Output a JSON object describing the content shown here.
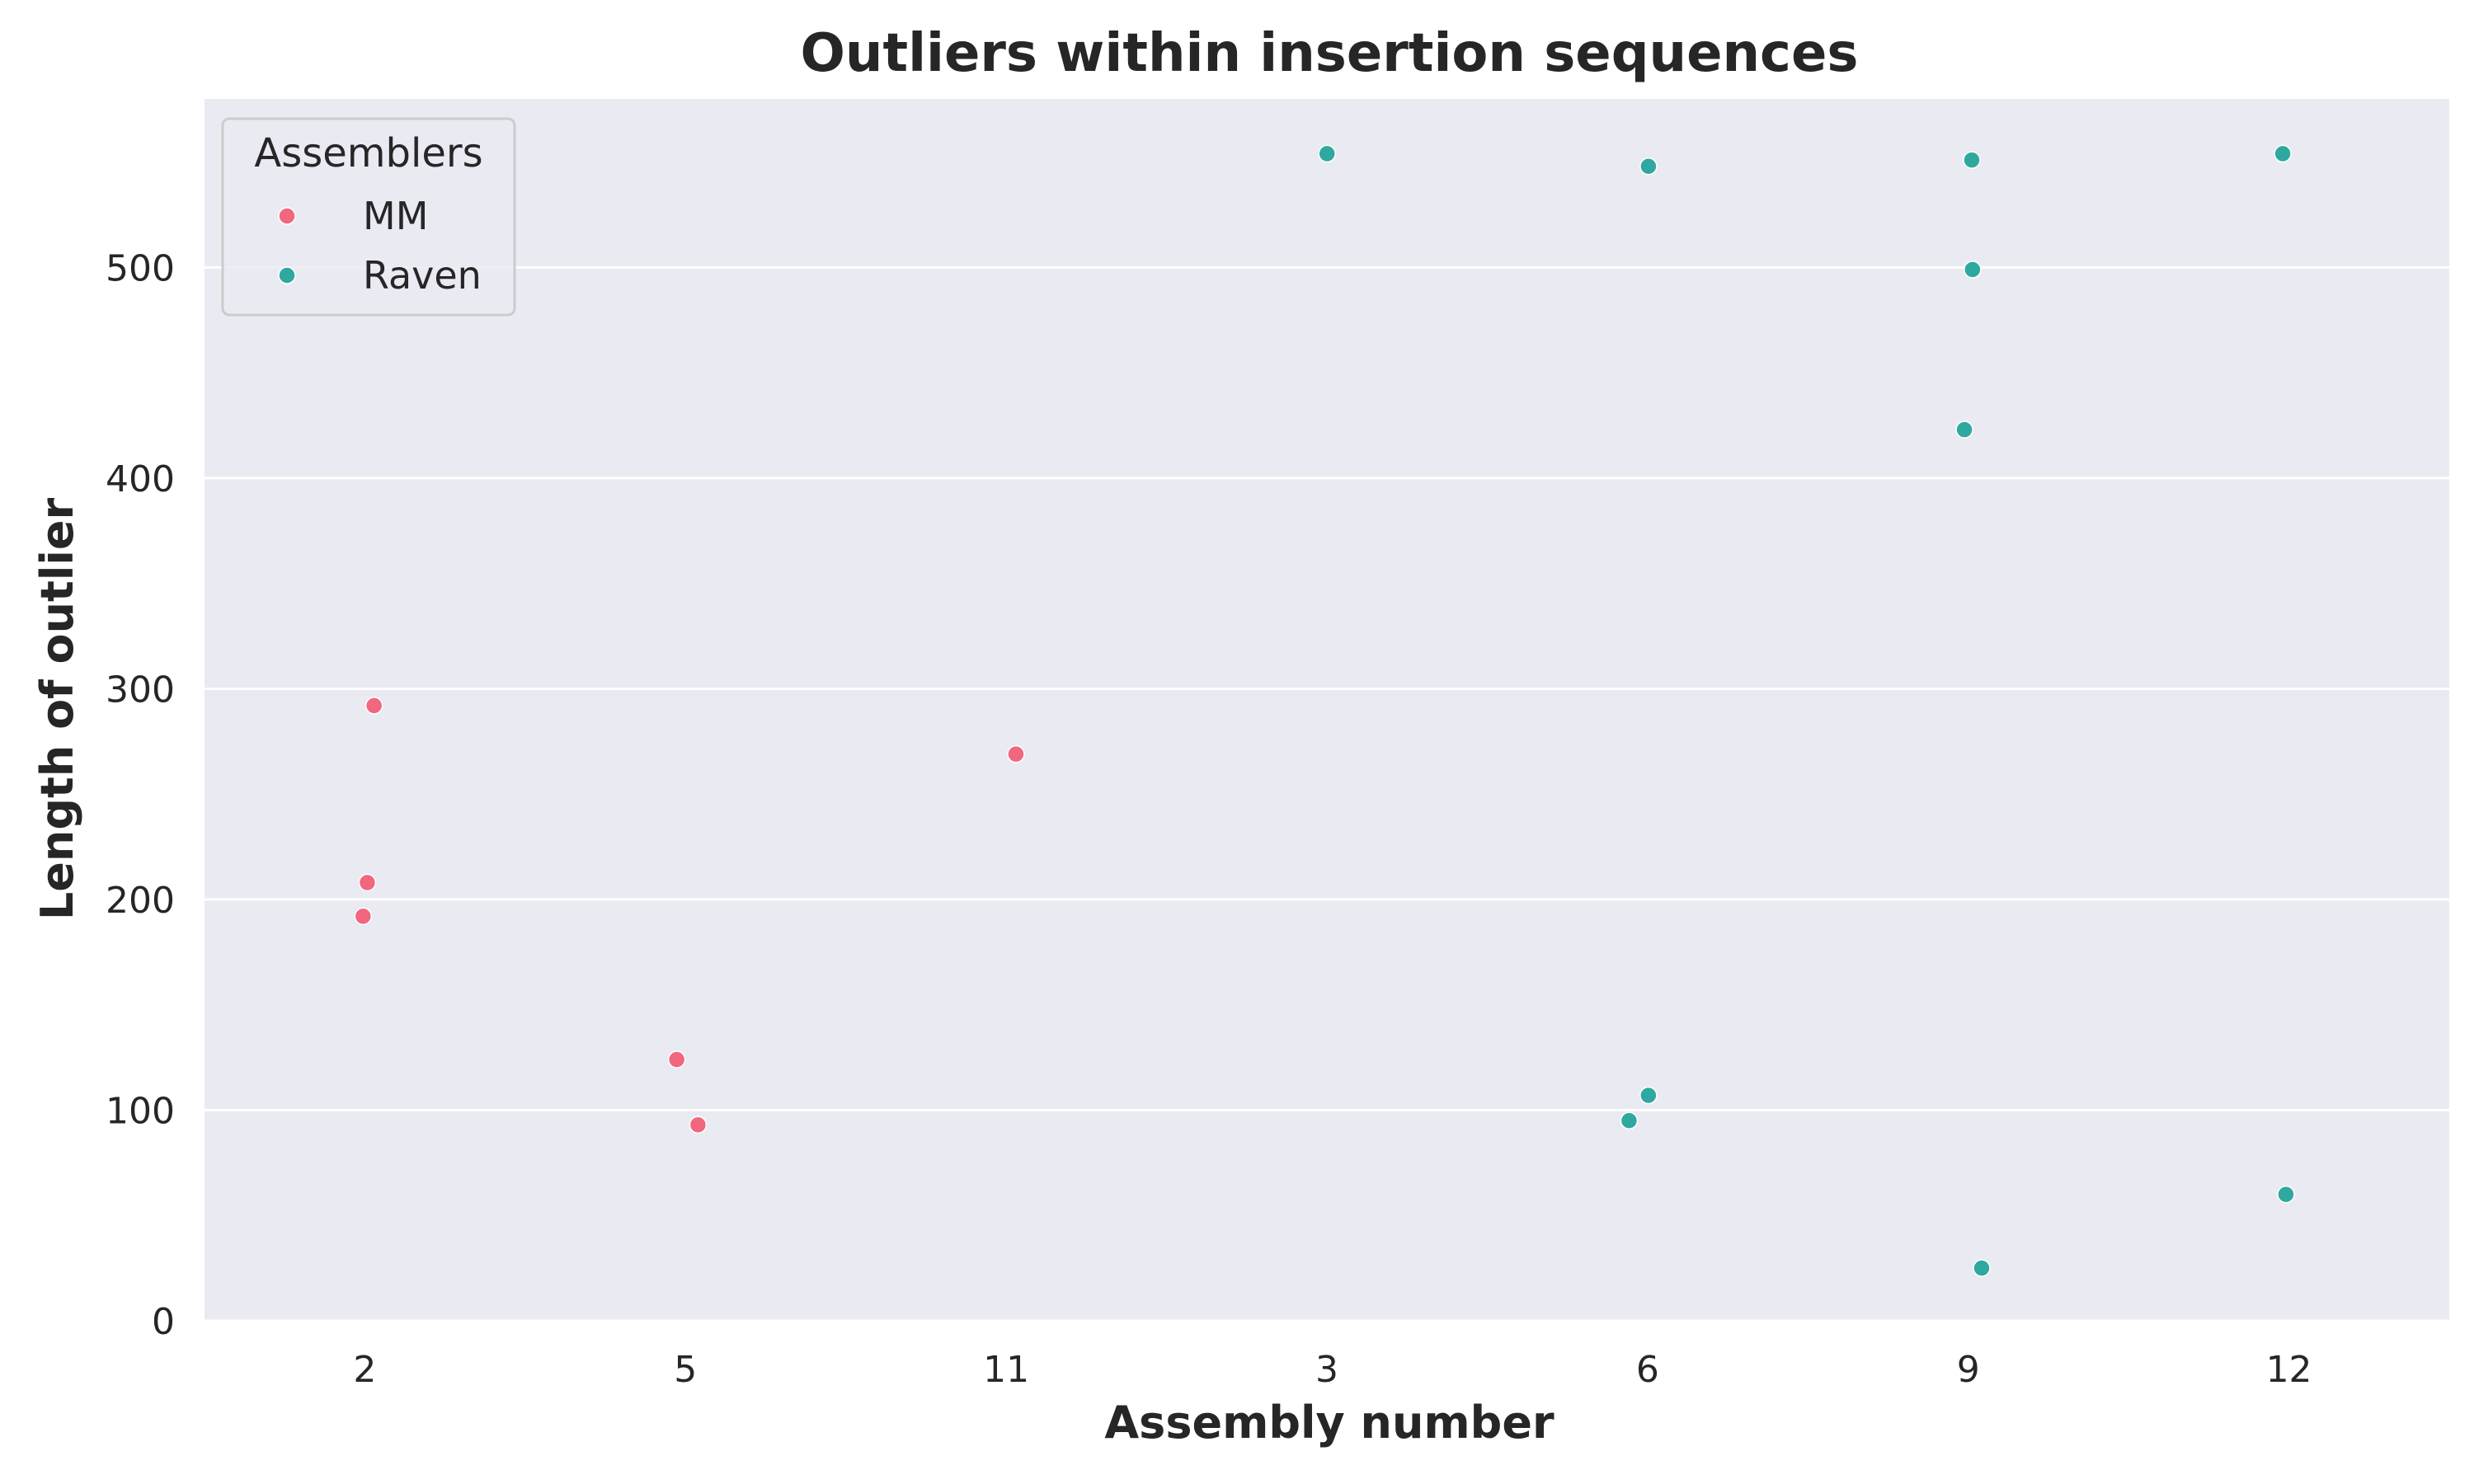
{
  "chart_data": {
    "type": "scatter",
    "title": "Outliers within insertion sequences",
    "xlabel": "Assembly number",
    "ylabel": "Length of outlier",
    "categories": [
      "2",
      "5",
      "11",
      "3",
      "6",
      "9",
      "12"
    ],
    "ylim": [
      0,
      580
    ],
    "yticks": [
      0,
      100,
      200,
      300,
      400,
      500
    ],
    "grid": true,
    "legend": {
      "title": "Assemblers",
      "placement": "top-left"
    },
    "series": [
      {
        "name": "MM",
        "color": "#f0677f",
        "points": [
          {
            "x": "2",
            "y": 292
          },
          {
            "x": "2",
            "y": 208
          },
          {
            "x": "2",
            "y": 192
          },
          {
            "x": "5",
            "y": 124
          },
          {
            "x": "5",
            "y": 93
          },
          {
            "x": "11",
            "y": 269
          }
        ]
      },
      {
        "name": "Raven",
        "color": "#2fa8a0",
        "points": [
          {
            "x": "3",
            "y": 554
          },
          {
            "x": "6",
            "y": 548
          },
          {
            "x": "6",
            "y": 107
          },
          {
            "x": "6",
            "y": 95
          },
          {
            "x": "9",
            "y": 551
          },
          {
            "x": "9",
            "y": 499
          },
          {
            "x": "9",
            "y": 423
          },
          {
            "x": "9",
            "y": 25
          },
          {
            "x": "12",
            "y": 554
          },
          {
            "x": "12",
            "y": 60
          }
        ]
      }
    ]
  }
}
